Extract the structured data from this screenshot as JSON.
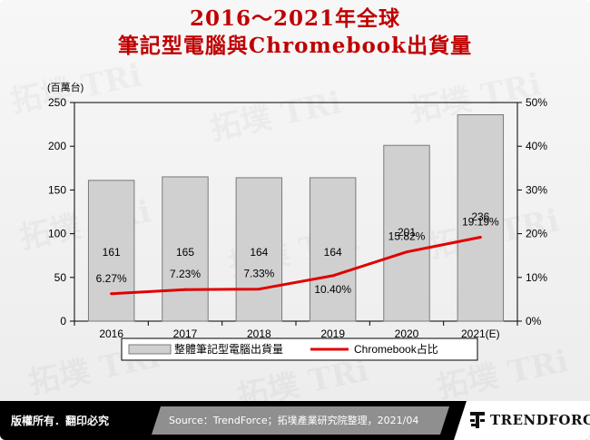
{
  "title_line1": "2016～2021年全球",
  "title_line2": "筆記型電腦與Chromebook出貨量",
  "watermark": "拓墣 TRi",
  "footer": {
    "rights": "版權所有．翻印必究",
    "source": "Source：TrendForce；拓墣產業研究院整理，2021/04",
    "logo": "TRENDFORCE"
  },
  "colors": {
    "title": "#c00000",
    "bar_fill": "#d0d0d0",
    "line": "#e00000"
  },
  "chart_data": {
    "type": "bar",
    "categories": [
      "2016",
      "2017",
      "2018",
      "2019",
      "2020",
      "2021(E)"
    ],
    "left_axis_unit": "(百萬台)",
    "ylim": [
      0,
      250
    ],
    "y_ticks": [
      "0",
      "50",
      "100",
      "150",
      "200",
      "250"
    ],
    "y2lim": [
      0,
      50
    ],
    "y2_ticks": [
      "0%",
      "10%",
      "20%",
      "30%",
      "40%",
      "50%"
    ],
    "grid": false,
    "legend_position": "bottom",
    "series": [
      {
        "name": "整體筆記型電腦出貨量",
        "type": "bar",
        "axis": "left",
        "values": [
          161,
          165,
          164,
          164,
          201,
          236
        ],
        "labels": [
          "161",
          "165",
          "164",
          "164",
          "201",
          "236"
        ]
      },
      {
        "name": "Chromebook占比",
        "type": "line",
        "axis": "right",
        "values": [
          6.27,
          7.23,
          7.33,
          10.4,
          15.82,
          19.19
        ],
        "labels": [
          "6.27%",
          "7.23%",
          "7.33%",
          "10.40%",
          "15.82%",
          "19.19%"
        ]
      }
    ]
  }
}
